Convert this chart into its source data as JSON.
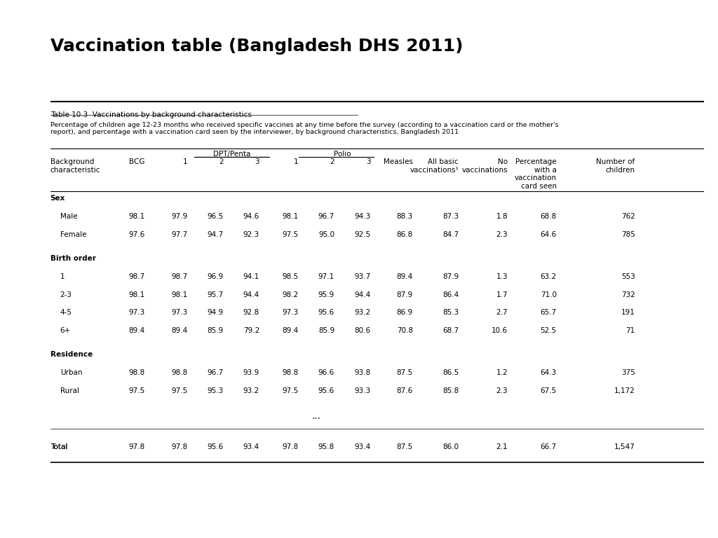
{
  "title": "Vaccination table (Bangladesh DHS 2011)",
  "table_title": "Table 10.3  Vaccinations by background characteristics",
  "description": "Percentage of children age 12-23 months who received specific vaccines at any time before the survey (according to a vaccination card or the mother's\nreport), and percentage with a vaccination card seen by the interviewer, by background characteristics, Bangladesh 2011",
  "col_headers": {
    "line1": [
      "",
      "",
      "DPT/Penta",
      "",
      "",
      "Polio",
      "",
      "",
      "",
      "All basic",
      "No",
      "Percentage\nwith a\nvaccination\ncard seen",
      "Number of\nchildren"
    ],
    "line2": [
      "Background\ncharacteristic",
      "BCG",
      "1",
      "2",
      "3",
      "1",
      "2",
      "3",
      "Measles",
      "vaccinations¹",
      "vaccinations",
      "",
      ""
    ]
  },
  "groups": [
    {
      "name": "Sex",
      "rows": [
        [
          "Male",
          "98.1",
          "97.9",
          "96.5",
          "94.6",
          "98.1",
          "96.7",
          "94.3",
          "88.3",
          "87.3",
          "1.8",
          "68.8",
          "762"
        ],
        [
          "Female",
          "97.6",
          "97.7",
          "94.7",
          "92.3",
          "97.5",
          "95.0",
          "92.5",
          "86.8",
          "84.7",
          "2.3",
          "64.6",
          "785"
        ]
      ]
    },
    {
      "name": "Birth order",
      "rows": [
        [
          "1",
          "98.7",
          "98.7",
          "96.9",
          "94.1",
          "98.5",
          "97.1",
          "93.7",
          "89.4",
          "87.9",
          "1.3",
          "63.2",
          "553"
        ],
        [
          "2-3",
          "98.1",
          "98.1",
          "95.7",
          "94.4",
          "98.2",
          "95.9",
          "94.4",
          "87.9",
          "86.4",
          "1.7",
          "71.0",
          "732"
        ],
        [
          "4-5",
          "97.3",
          "97.3",
          "94.9",
          "92.8",
          "97.3",
          "95.6",
          "93.2",
          "86.9",
          "85.3",
          "2.7",
          "65.7",
          "191"
        ],
        [
          "6+",
          "89.4",
          "89.4",
          "85.9",
          "79.2",
          "89.4",
          "85.9",
          "80.6",
          "70.8",
          "68.7",
          "10.6",
          "52.5",
          "71"
        ]
      ]
    },
    {
      "name": "Residence",
      "rows": [
        [
          "Urban",
          "98.8",
          "98.8",
          "96.7",
          "93.9",
          "98.8",
          "96.6",
          "93.8",
          "87.5",
          "86.5",
          "1.2",
          "64.3",
          "375"
        ],
        [
          "Rural",
          "97.5",
          "97.5",
          "95.3",
          "93.2",
          "97.5",
          "95.6",
          "93.3",
          "87.6",
          "85.8",
          "2.3",
          "67.5",
          "1,172"
        ]
      ]
    }
  ],
  "ellipsis_row": true,
  "total_row": [
    "Total",
    "97.8",
    "97.8",
    "95.6",
    "93.4",
    "97.8",
    "95.8",
    "93.4",
    "87.5",
    "86.0",
    "2.1",
    "66.7",
    "1,547"
  ],
  "header_bar_color": "#c0133a",
  "sidebar_color": "#1a3a5c",
  "bg_color": "#ffffff",
  "title_color": "#000000",
  "text_color": "#000000",
  "table_text_color": "#000000"
}
